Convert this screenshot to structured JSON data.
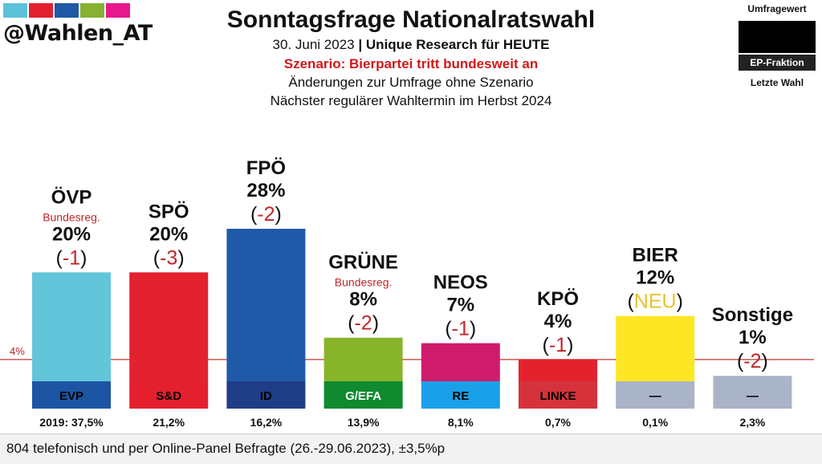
{
  "header": {
    "handle": "@Wahlen_AT",
    "logo_colors": [
      "#5bc1d8",
      "#e4202e",
      "#1f58a6",
      "#86b22f",
      "#e8178c"
    ],
    "title": "Sonntagsfrage Nationalratswahl",
    "date": "30. Juni 2023",
    "separator": "|",
    "pollster": "Unique Research für HEUTE",
    "scenario": "Szenario: Bierpartei tritt bundesweit an",
    "note1": "Änderungen zur Umfrage ohne Szenario",
    "note2": "Nächster regulärer Wahltermin im Herbst 2024"
  },
  "legend": {
    "poll_value": "Umfragewert",
    "ep_fraction": "EP-Fraktion",
    "last_election": "Letzte Wahl"
  },
  "footer": {
    "text": "804 telefonisch und per Online-Panel Befragte (26.-29.06.2023), ±3,5%p"
  },
  "chart_data": {
    "type": "bar",
    "threshold": {
      "value": 4,
      "label": "4%"
    },
    "ylim": [
      0,
      28
    ],
    "categories": [
      "ÖVP",
      "SPÖ",
      "FPÖ",
      "GRÜNE",
      "NEOS",
      "KPÖ",
      "BIER",
      "Sonstige"
    ],
    "values": [
      20,
      20,
      28,
      8,
      7,
      4,
      12,
      1
    ],
    "value_labels": [
      "20%",
      "20%",
      "28%",
      "8%",
      "7%",
      "4%",
      "12%",
      "1%"
    ],
    "changes": [
      "-1",
      "-3",
      "-2",
      "-2",
      "-1",
      "-1",
      "NEU",
      "-2"
    ],
    "government_tag": [
      "Bundesreg.",
      "",
      "",
      "Bundesreg.",
      "",
      "",
      "",
      ""
    ],
    "colors": [
      "#63c5da",
      "#e3222f",
      "#1f5aa8",
      "#88b42a",
      "#cf1b6b",
      "#e4222e",
      "#fde725",
      "#aab4c8"
    ],
    "ep_fractions": [
      "EVP",
      "S&D",
      "ID",
      "G/EFA",
      "RE",
      "LINKE",
      "—",
      "—"
    ],
    "ep_colors": [
      "#1b55a3",
      "#e4202e",
      "#1f3d86",
      "#0f8a2e",
      "#1aa0e8",
      "#d5323b",
      "#aab4c8",
      "#aab4c8"
    ],
    "ep_text_colors": [
      "#000000",
      "#000000",
      "#000000",
      "#ffffff",
      "#000000",
      "#000000",
      "#000000",
      "#000000"
    ],
    "last_election": [
      "2019: 37,5%",
      "21,2%",
      "16,2%",
      "13,9%",
      "8,1%",
      "0,7%",
      "0,1%",
      "2,3%"
    ]
  }
}
